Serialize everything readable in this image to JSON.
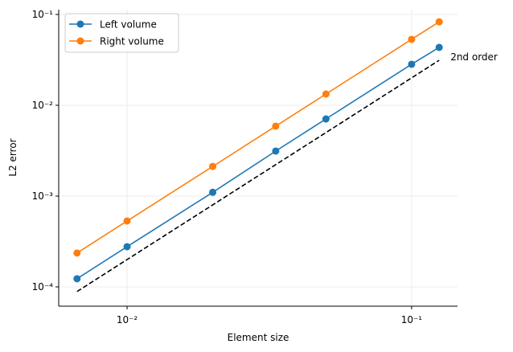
{
  "chart_data": {
    "type": "line",
    "x_label": "Element size",
    "y_label": "L2 error",
    "x": [
      0.00667,
      0.01,
      0.02,
      0.0333,
      0.05,
      0.1,
      0.125
    ],
    "series": [
      {
        "name": "Left volume",
        "color": "#1f77b4",
        "values": [
          0.000123,
          0.000277,
          0.0011,
          0.00313,
          0.00707,
          0.0283,
          0.0434
        ]
      },
      {
        "name": "Right volume",
        "color": "#ff7f0e",
        "values": [
          0.000236,
          0.000532,
          0.00212,
          0.00589,
          0.0133,
          0.0532,
          0.083
        ]
      }
    ],
    "reference": {
      "x": [
        0.00667,
        0.125
      ],
      "values": [
        8.89e-05,
        0.0313
      ],
      "color": "#000000",
      "label": "2nd order"
    },
    "xscale": "log",
    "yscale": "log",
    "xlim": [
      0.00575,
      0.145
    ],
    "ylim": [
      6.13e-05,
      0.113
    ],
    "xticks": [
      {
        "value": 0.01,
        "label": "10⁻²"
      },
      {
        "value": 0.1,
        "label": "10⁻¹"
      }
    ],
    "yticks": [
      {
        "value": 0.0001,
        "label": "10⁻⁴"
      },
      {
        "value": 0.001,
        "label": "10⁻³"
      },
      {
        "value": 0.01,
        "label": "10⁻²"
      },
      {
        "value": 0.1,
        "label": "10⁻¹"
      }
    ],
    "grid": true,
    "legend": "upper left"
  }
}
